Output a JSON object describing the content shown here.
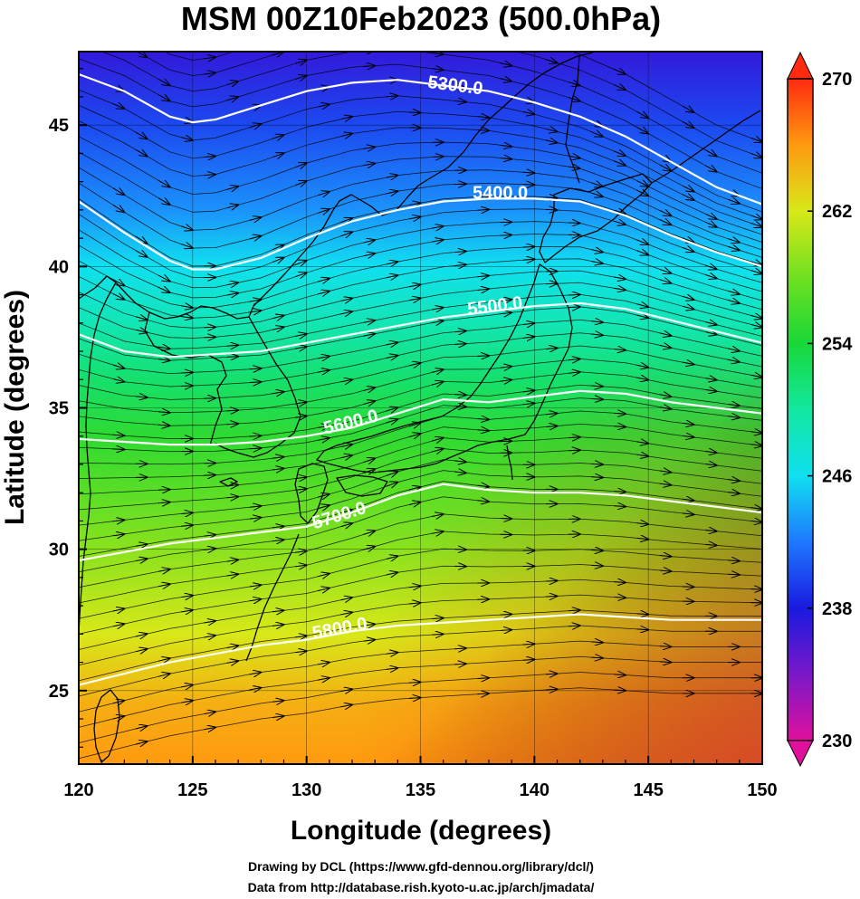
{
  "title": "MSM 00Z10Feb2023 (500.0hPa)",
  "xlabel": "Longitude (degrees)",
  "ylabel": "Latitude  (degrees)",
  "credits": [
    "Drawing by DCL (https://www.gfd-dennou.org/library/dcl/)",
    "Data from http://database.rish.kyoto-u.ac.jp/arch/jmadata/"
  ],
  "chart_data": {
    "type": "heatmap",
    "xlim": [
      120,
      150
    ],
    "ylim": [
      22.4,
      47.6
    ],
    "xticks": [
      120,
      125,
      130,
      135,
      140,
      145,
      150
    ],
    "xtick_labels": [
      "120",
      "125",
      "130",
      "135",
      "140",
      "145",
      "150"
    ],
    "yticks": [
      25,
      30,
      35,
      40,
      45
    ],
    "ytick_labels": [
      "25",
      "30",
      "35",
      "40",
      "45"
    ],
    "grid": true,
    "colorbar": {
      "min": 230,
      "max": 270,
      "ticks": [
        230,
        238,
        246,
        254,
        262,
        270
      ],
      "tick_labels": [
        "230",
        "238",
        "246",
        "254",
        "262",
        "270"
      ],
      "extend": "both",
      "stops": [
        {
          "value": 230,
          "color": "#e0109c"
        },
        {
          "value": 234,
          "color": "#7a18c8"
        },
        {
          "value": 238,
          "color": "#1a1ae0"
        },
        {
          "value": 242,
          "color": "#1e78ff"
        },
        {
          "value": 246,
          "color": "#10e0f0"
        },
        {
          "value": 250,
          "color": "#12e8a0"
        },
        {
          "value": 254,
          "color": "#18d838"
        },
        {
          "value": 258,
          "color": "#70e020"
        },
        {
          "value": 262,
          "color": "#d8e818"
        },
        {
          "value": 266,
          "color": "#ff9a10"
        },
        {
          "value": 270,
          "color": "#ff2a10"
        }
      ]
    },
    "temperature_field": [
      {
        "lat": 47.6,
        "value": 237
      },
      {
        "lat": 45,
        "value": 240
      },
      {
        "lat": 42,
        "value": 243
      },
      {
        "lat": 40,
        "value": 246
      },
      {
        "lat": 38,
        "value": 249
      },
      {
        "lat": 36,
        "value": 252
      },
      {
        "lat": 34,
        "value": 255
      },
      {
        "lat": 32,
        "value": 257
      },
      {
        "lat": 30,
        "value": 259
      },
      {
        "lat": 27,
        "value": 262
      },
      {
        "lat": 24.5,
        "value": 265
      },
      {
        "lat": 22.4,
        "value": 266
      }
    ],
    "contours": [
      {
        "label": "5300.0",
        "label_lon": 136.5,
        "label_lat": 46.2,
        "points": [
          [
            120,
            46.8
          ],
          [
            122,
            46.2
          ],
          [
            124,
            45.3
          ],
          [
            125,
            45.1
          ],
          [
            126,
            45.2
          ],
          [
            128,
            45.7
          ],
          [
            130,
            46.2
          ],
          [
            132,
            46.5
          ],
          [
            134,
            46.6
          ],
          [
            136,
            46.4
          ],
          [
            138,
            46.2
          ],
          [
            140,
            45.8
          ],
          [
            142,
            45.3
          ],
          [
            144,
            44.6
          ],
          [
            146,
            43.7
          ],
          [
            148,
            42.8
          ],
          [
            150,
            42.2
          ]
        ]
      },
      {
        "label": "5400.0",
        "label_lon": 138.5,
        "label_lat": 42.4,
        "points": [
          [
            120,
            42.3
          ],
          [
            122,
            41.2
          ],
          [
            124,
            40.2
          ],
          [
            125,
            39.9
          ],
          [
            126,
            39.9
          ],
          [
            128,
            40.3
          ],
          [
            130,
            41.0
          ],
          [
            132,
            41.6
          ],
          [
            134,
            42.0
          ],
          [
            136,
            42.3
          ],
          [
            138,
            42.4
          ],
          [
            140,
            42.4
          ],
          [
            142,
            42.3
          ],
          [
            144,
            41.8
          ],
          [
            146,
            41.1
          ],
          [
            148,
            40.5
          ],
          [
            150,
            40.0
          ]
        ]
      },
      {
        "label": "5500.0",
        "label_lon": 138.3,
        "label_lat": 38.4,
        "points": [
          [
            120,
            37.6
          ],
          [
            122,
            37.0
          ],
          [
            124,
            36.8
          ],
          [
            126,
            36.9
          ],
          [
            128,
            37.0
          ],
          [
            130,
            37.3
          ],
          [
            132,
            37.6
          ],
          [
            134,
            37.9
          ],
          [
            136,
            38.2
          ],
          [
            138,
            38.4
          ],
          [
            140,
            38.6
          ],
          [
            142,
            38.7
          ],
          [
            144,
            38.5
          ],
          [
            146,
            38.1
          ],
          [
            148,
            37.7
          ],
          [
            150,
            37.3
          ]
        ]
      },
      {
        "label": "5600.0",
        "label_lon": 132.0,
        "label_lat": 34.3,
        "points": [
          [
            120,
            33.9
          ],
          [
            122,
            33.8
          ],
          [
            124,
            33.7
          ],
          [
            126,
            33.7
          ],
          [
            128,
            33.8
          ],
          [
            130,
            34.0
          ],
          [
            132,
            34.3
          ],
          [
            134,
            34.8
          ],
          [
            136,
            35.3
          ],
          [
            138,
            35.2
          ],
          [
            140,
            35.4
          ],
          [
            142,
            35.6
          ],
          [
            144,
            35.5
          ],
          [
            146,
            35.2
          ],
          [
            148,
            35.0
          ],
          [
            150,
            34.8
          ]
        ]
      },
      {
        "label": "5700.0",
        "label_lon": 131.5,
        "label_lat": 31.0,
        "points": [
          [
            120,
            29.6
          ],
          [
            122,
            29.9
          ],
          [
            124,
            30.2
          ],
          [
            126,
            30.4
          ],
          [
            128,
            30.6
          ],
          [
            130,
            30.8
          ],
          [
            132,
            31.3
          ],
          [
            134,
            31.9
          ],
          [
            136,
            32.3
          ],
          [
            138,
            32.1
          ],
          [
            140,
            32.0
          ],
          [
            142,
            32.0
          ],
          [
            144,
            31.9
          ],
          [
            146,
            31.7
          ],
          [
            148,
            31.5
          ],
          [
            150,
            31.3
          ]
        ]
      },
      {
        "label": "5800.0",
        "label_lon": 131.5,
        "label_lat": 27.0,
        "points": [
          [
            120,
            25.2
          ],
          [
            122,
            25.6
          ],
          [
            124,
            26.0
          ],
          [
            126,
            26.3
          ],
          [
            128,
            26.6
          ],
          [
            130,
            26.8
          ],
          [
            132,
            27.1
          ],
          [
            134,
            27.3
          ],
          [
            136,
            27.4
          ],
          [
            138,
            27.5
          ],
          [
            140,
            27.6
          ],
          [
            142,
            27.7
          ],
          [
            144,
            27.6
          ],
          [
            146,
            27.5
          ],
          [
            148,
            27.5
          ],
          [
            150,
            27.5
          ]
        ]
      }
    ]
  }
}
